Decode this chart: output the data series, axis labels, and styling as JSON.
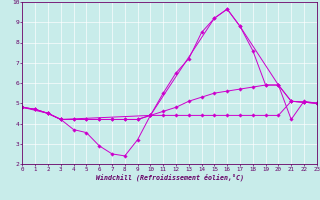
{
  "xlabel": "Windchill (Refroidissement éolien,°C)",
  "xlim": [
    0,
    23
  ],
  "ylim": [
    2,
    10
  ],
  "xticks": [
    0,
    1,
    2,
    3,
    4,
    5,
    6,
    7,
    8,
    9,
    10,
    11,
    12,
    13,
    14,
    15,
    16,
    17,
    18,
    19,
    20,
    21,
    22,
    23
  ],
  "yticks": [
    2,
    3,
    4,
    5,
    6,
    7,
    8,
    9,
    10
  ],
  "bg_color": "#c8ecea",
  "line_color": "#cc00cc",
  "lines": [
    {
      "x": [
        0,
        1,
        2,
        3,
        4,
        5,
        6,
        7,
        8,
        9,
        10,
        11,
        12,
        13,
        14,
        15,
        16,
        17,
        18,
        19,
        20,
        21,
        22,
        23
      ],
      "y": [
        4.8,
        4.7,
        4.5,
        4.2,
        3.7,
        3.55,
        2.9,
        2.5,
        2.4,
        3.2,
        4.4,
        4.4,
        4.4,
        4.4,
        4.4,
        4.4,
        4.4,
        4.4,
        4.4,
        4.4,
        4.4,
        5.1,
        5.05,
        5.0
      ]
    },
    {
      "x": [
        0,
        1,
        2,
        3,
        4,
        5,
        6,
        7,
        8,
        9,
        10,
        11,
        12,
        13,
        14,
        15,
        16,
        17,
        18,
        19,
        20,
        21,
        22,
        23
      ],
      "y": [
        4.8,
        4.7,
        4.5,
        4.2,
        4.2,
        4.2,
        4.2,
        4.2,
        4.2,
        4.2,
        4.4,
        4.6,
        4.8,
        5.1,
        5.3,
        5.5,
        5.6,
        5.7,
        5.8,
        5.9,
        5.9,
        5.1,
        5.05,
        5.0
      ]
    },
    {
      "x": [
        0,
        1,
        2,
        3,
        4,
        5,
        6,
        7,
        8,
        9,
        10,
        11,
        12,
        13,
        14,
        15,
        16,
        17,
        18,
        19,
        20,
        21,
        22,
        23
      ],
      "y": [
        4.8,
        4.7,
        4.5,
        4.2,
        4.2,
        4.2,
        4.2,
        4.2,
        4.2,
        4.2,
        4.4,
        5.5,
        6.5,
        7.2,
        8.5,
        9.2,
        9.65,
        8.8,
        7.6,
        5.9,
        5.9,
        4.2,
        5.1,
        5.0
      ]
    },
    {
      "x": [
        0,
        2,
        3,
        10,
        15,
        16,
        17,
        20,
        21,
        22,
        23
      ],
      "y": [
        4.8,
        4.5,
        4.2,
        4.4,
        9.2,
        9.65,
        8.8,
        5.9,
        5.1,
        5.05,
        5.0
      ]
    }
  ]
}
